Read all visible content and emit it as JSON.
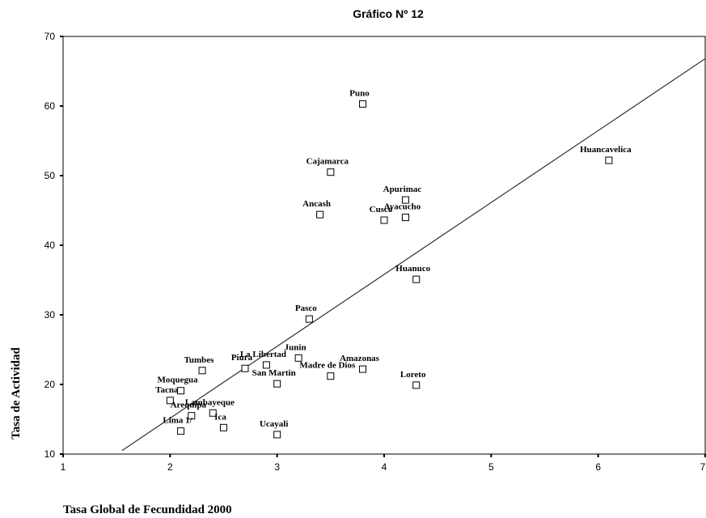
{
  "chart_data": {
    "type": "scatter",
    "title": "Gráfico Nº 12",
    "x_label": "Tasa Global de Fecundidad 2000",
    "y_label": "Tasa de Actividad",
    "labels": [
      "Puno",
      "Cajamarca",
      "Ancash",
      "Apurimac",
      "Cusco",
      "Ayacucho",
      "Huancavelica",
      "Huanuco",
      "Pasco",
      "Junin",
      "La Libertad",
      "Piura",
      "Tumbes",
      "San Martin",
      "Madre de Dios",
      "Amazonas",
      "Loreto",
      "Moquegua",
      "Tacna",
      "Arequipa",
      "Lambayeque",
      "Ica",
      "Lima 1/",
      "Ucayali"
    ],
    "x": [
      3.8,
      3.5,
      3.4,
      4.2,
      4.0,
      4.2,
      6.1,
      4.3,
      3.3,
      3.2,
      2.9,
      2.7,
      2.3,
      3.0,
      3.5,
      3.8,
      4.3,
      2.1,
      2.0,
      2.2,
      2.4,
      2.5,
      2.1,
      3.0
    ],
    "values": [
      60.3,
      50.5,
      44.4,
      46.5,
      43.6,
      44.0,
      52.2,
      35.1,
      29.4,
      23.8,
      22.8,
      22.3,
      22.0,
      20.1,
      21.2,
      22.2,
      19.9,
      19.1,
      17.7,
      15.5,
      15.9,
      13.8,
      13.3,
      12.8
    ],
    "color": "#000000",
    "trendline": {
      "x": [
        1.55,
        7
      ],
      "y": [
        10.5,
        66.8
      ],
      "color": "#333333"
    },
    "xlim": [
      1,
      7
    ],
    "xticks": [
      1,
      2,
      3,
      4,
      5,
      6,
      7
    ],
    "ylim": [
      10,
      70
    ],
    "yticks": [
      10,
      20,
      30,
      40,
      50,
      60,
      70
    ]
  }
}
